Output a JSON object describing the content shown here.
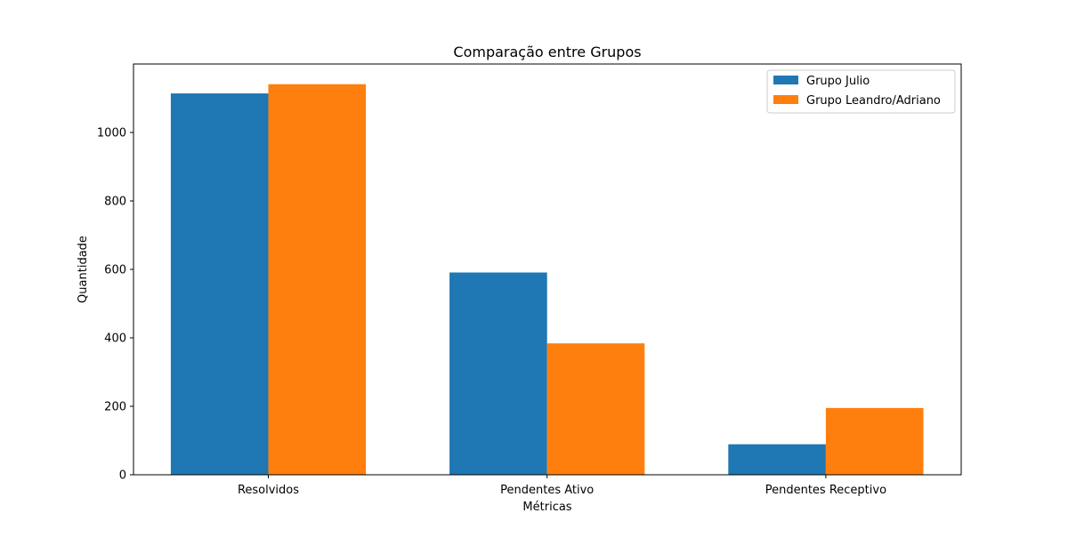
{
  "chart_data": {
    "type": "bar",
    "title": "Comparação entre Grupos",
    "xlabel": "Métricas",
    "ylabel": "Quantidade",
    "categories": [
      "Resolvidos",
      "Pendentes Ativo",
      "Pendentes Receptivo"
    ],
    "series": [
      {
        "name": "Grupo Julio",
        "color": "#1f77b4",
        "values": [
          1114,
          591,
          89
        ]
      },
      {
        "name": "Grupo Leandro/Adriano",
        "color": "#ff7f0e",
        "values": [
          1141,
          384,
          195
        ]
      }
    ],
    "ylim": [
      0,
      1200
    ],
    "yticks": [
      0,
      200,
      400,
      600,
      800,
      1000
    ],
    "grid": false,
    "legend_position": "top-right"
  }
}
